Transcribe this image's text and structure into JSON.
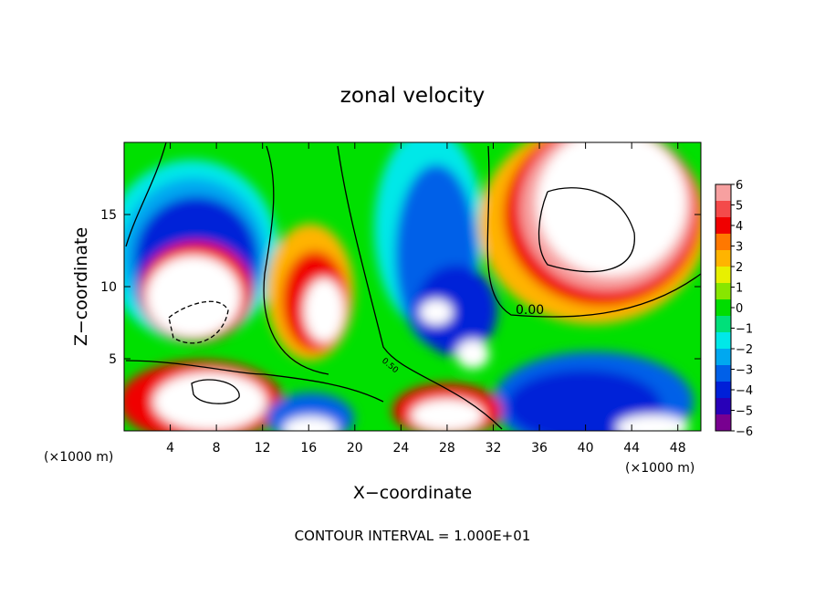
{
  "chart_data": {
    "type": "heatmap",
    "title": "zonal velocity",
    "xlabel": "X−coordinate",
    "ylabel": "Z−coordinate",
    "x_unit_left": "(×1000 m)",
    "x_unit_right": "(×1000 m)",
    "footer": "CONTOUR INTERVAL = 1.000E+01",
    "contour_label": "0.00",
    "contour_label_small": "0.50",
    "xlim": [
      0,
      50
    ],
    "ylim": [
      0,
      20
    ],
    "x_ticks": [
      "4",
      "8",
      "12",
      "16",
      "20",
      "24",
      "28",
      "32",
      "36",
      "40",
      "44",
      "48"
    ],
    "x_tick_values": [
      4,
      8,
      12,
      16,
      20,
      24,
      28,
      32,
      36,
      40,
      44,
      48
    ],
    "y_ticks": [
      "5",
      "10",
      "15"
    ],
    "y_tick_values": [
      5,
      10,
      15
    ],
    "colorbar": {
      "range": [
        -6,
        6
      ],
      "labels": [
        "6",
        "5",
        "4",
        "3",
        "2",
        "1",
        "0",
        "−1",
        "−2",
        "−3",
        "−4",
        "−5",
        "−6"
      ],
      "colors": [
        "#f7a0a0",
        "#f44a4a",
        "#f00000",
        "#ff7800",
        "#ffb400",
        "#e8f000",
        "#88e600",
        "#00dd00",
        "#00e07a",
        "#00e8e8",
        "#00a8f0",
        "#0060e8",
        "#0020d8",
        "#2800b8",
        "#780090"
      ]
    },
    "background_color": "#00e000",
    "saturation_color": "#ffffff",
    "features": [
      {
        "name": "left-negative-arc",
        "x": 5.5,
        "z": 13,
        "rx": 5.5,
        "rz": 5,
        "value": -5
      },
      {
        "name": "left-white-core",
        "x": 6,
        "z": 8.5,
        "rx": 3.5,
        "rz": 3,
        "value": 8
      },
      {
        "name": "upper-right-jet",
        "x": 42,
        "z": 15,
        "rx": 8,
        "rz": 6,
        "value": 7
      },
      {
        "name": "central-positive-blob",
        "x": 17,
        "z": 9,
        "rx": 3,
        "rz": 4.5,
        "value": 7
      },
      {
        "name": "central-negative-column",
        "x": 26,
        "z": 12,
        "rx": 3.5,
        "rz": 7,
        "value": -5
      },
      {
        "name": "lower-right-negative",
        "x": 40,
        "z": 3,
        "rx": 5,
        "rz": 3,
        "value": -6
      }
    ]
  }
}
